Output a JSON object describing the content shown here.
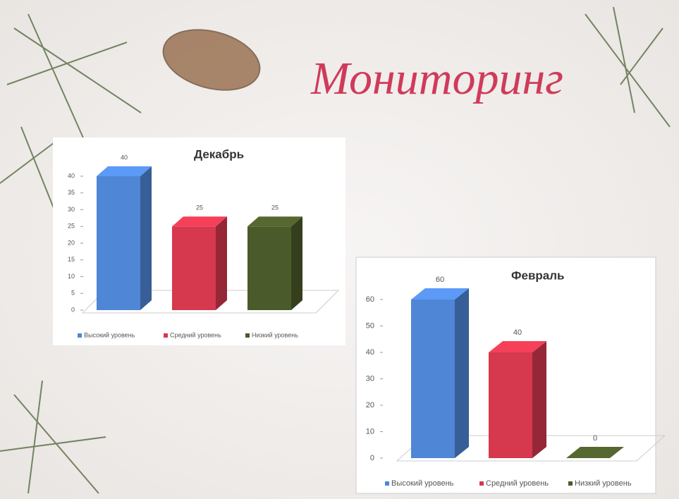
{
  "slide_title": "Мониторинг",
  "chart_data": [
    {
      "type": "bar",
      "title": "Декабрь",
      "categories": [
        "Высокий уровень",
        "Средний уровень",
        "Низкий уровень"
      ],
      "values": [
        40,
        25,
        25
      ],
      "colors": [
        "#4f86d6",
        "#d6384e",
        "#4b5a2a"
      ],
      "ylim": [
        0,
        40
      ],
      "yticks": [
        0,
        5,
        10,
        15,
        20,
        25,
        30,
        35,
        40
      ]
    },
    {
      "type": "bar",
      "title": "Февраль",
      "categories": [
        "Высокий уровень",
        "Средний уровень",
        "Низкий уровень"
      ],
      "values": [
        60,
        40,
        0
      ],
      "colors": [
        "#4f86d6",
        "#d6384e",
        "#4b5a2a"
      ],
      "ylim": [
        0,
        60
      ],
      "yticks": [
        0,
        10,
        20,
        30,
        40,
        50,
        60
      ]
    }
  ]
}
